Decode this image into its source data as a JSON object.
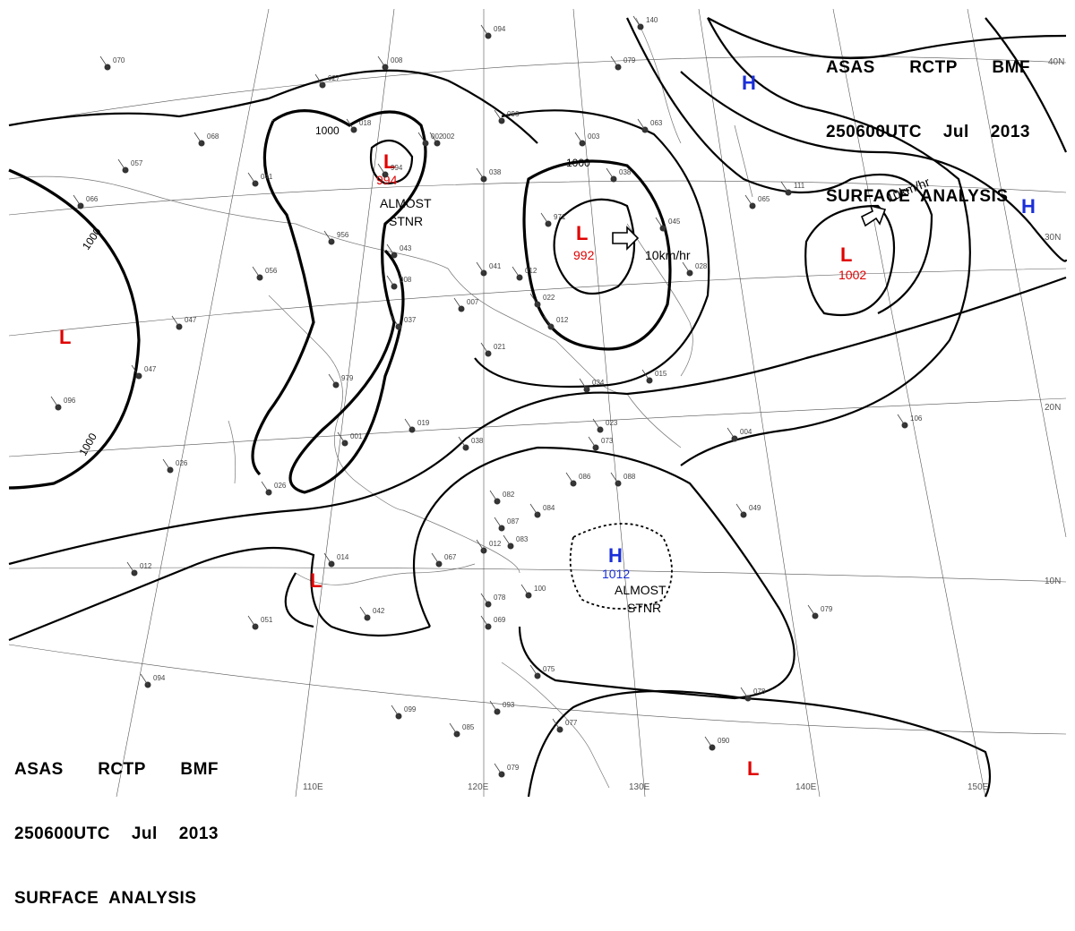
{
  "header": {
    "line1": [
      "ASAS",
      "RCTP",
      "BMF"
    ],
    "line2": [
      "250600UTC",
      "Jul",
      "2013"
    ],
    "line3": "SURFACE  ANALYSIS"
  },
  "grid_labels": {
    "longitudes": [
      "110E",
      "120E",
      "130E",
      "140E",
      "150E"
    ],
    "latitudes": [
      "30N",
      "20N",
      "10N",
      "40N"
    ]
  },
  "pressure_systems": [
    {
      "id": "low-china-north",
      "type": "L",
      "pressure": "994",
      "note": [
        "ALMOST",
        "STNR"
      ]
    },
    {
      "id": "low-korea",
      "type": "L",
      "pressure": "992",
      "motion": "10km/hr"
    },
    {
      "id": "low-pacific-ne",
      "type": "L",
      "pressure": "1002",
      "motion": "10km/hr"
    },
    {
      "id": "low-west",
      "type": "L"
    },
    {
      "id": "low-sw",
      "type": "L"
    },
    {
      "id": "low-se",
      "type": "L"
    },
    {
      "id": "high-philippine-sea",
      "type": "H",
      "pressure": "1012",
      "note": [
        "ALMOST",
        "STNR"
      ]
    },
    {
      "id": "high-north",
      "type": "H"
    },
    {
      "id": "high-east",
      "type": "H"
    }
  ],
  "isobar_labels": [
    "1000",
    "1000",
    "1000",
    "1000"
  ],
  "stations": [
    "070",
    "057",
    "068",
    "041",
    "956",
    "027",
    "056",
    "018",
    "979",
    "001",
    "019",
    "038",
    "007",
    "021",
    "008",
    "037",
    "994",
    "002",
    "038",
    "041",
    "012",
    "971",
    "012",
    "022",
    "034",
    "023",
    "028",
    "038",
    "008",
    "043",
    "047",
    "051",
    "042",
    "014",
    "012",
    "067",
    "083",
    "087",
    "082",
    "084",
    "086",
    "088",
    "073",
    "049",
    "096",
    "100",
    "078",
    "069",
    "075",
    "077",
    "085",
    "093",
    "094",
    "099",
    "079",
    "090",
    "078",
    "079",
    "106",
    "004",
    "003",
    "111",
    "063",
    "045",
    "140",
    "094",
    "002",
    "079",
    "065",
    "026",
    "096",
    "026",
    "015",
    "012",
    "066",
    "047"
  ]
}
